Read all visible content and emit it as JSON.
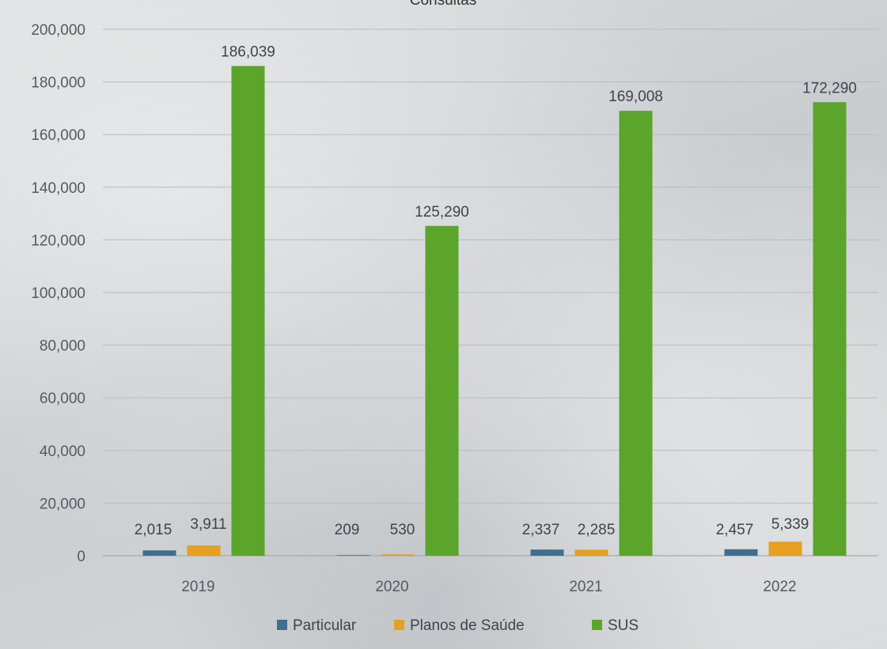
{
  "chart_data": {
    "type": "bar",
    "title": "Consultas",
    "categories": [
      "2019",
      "2020",
      "2021",
      "2022"
    ],
    "series": [
      {
        "name": "Particular",
        "color": "#3d6f8f",
        "values": [
          2015,
          209,
          2337,
          2457
        ]
      },
      {
        "name": "Planos de Saúde",
        "color": "#e5a020",
        "values": [
          3911,
          530,
          2285,
          5339
        ]
      },
      {
        "name": "SUS",
        "color": "#5aa52a",
        "values": [
          186039,
          125290,
          169008,
          172290
        ]
      }
    ],
    "data_labels": [
      [
        "2,015",
        "209",
        "2,337",
        "2,457"
      ],
      [
        "3,911",
        "530",
        "2,285",
        "5,339"
      ],
      [
        "186,039",
        "125,290",
        "169,008",
        "172,290"
      ]
    ],
    "y_ticks": [
      "0",
      "20,000",
      "40,000",
      "60,000",
      "80,000",
      "100,000",
      "120,000",
      "140,000",
      "160,000",
      "180,000",
      "200,000"
    ],
    "ylim": [
      0,
      200000
    ],
    "grid": true,
    "legend_position": "bottom",
    "xlabel": "",
    "ylabel": ""
  }
}
